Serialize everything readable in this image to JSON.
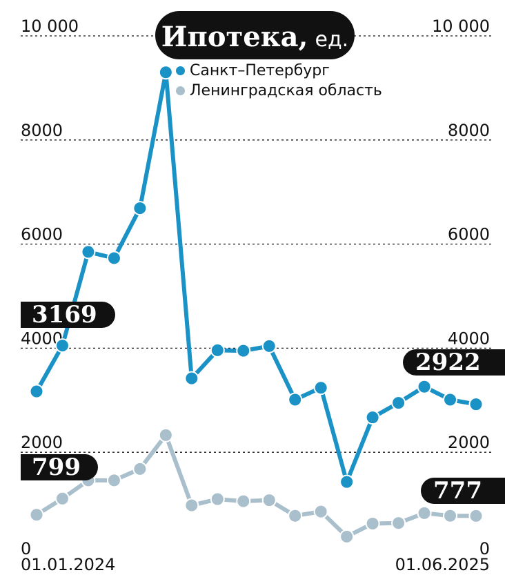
{
  "title": {
    "main": "Ипотека,",
    "unit": "ед."
  },
  "legend": [
    {
      "label": "Санкт–Петербург",
      "color": "#1a92c6"
    },
    {
      "label": "Ленинградская область",
      "color": "#a9bfcc"
    }
  ],
  "callouts": {
    "spb_start": "3169",
    "lo_start": "799",
    "spb_end": "2922",
    "lo_end": "777"
  },
  "x_axis": {
    "start": "01.01.2024",
    "end": "01.06.2025"
  },
  "chart_data": {
    "type": "line",
    "x": [
      "01.2024",
      "02.2024",
      "03.2024",
      "04.2024",
      "05.2024",
      "06.2024",
      "07.2024",
      "08.2024",
      "09.2024",
      "10.2024",
      "11.2024",
      "12.2024",
      "01.2025",
      "02.2025",
      "03.2025",
      "04.2025",
      "05.2025",
      "06.2025"
    ],
    "series": [
      {
        "name": "Санкт–Петербург",
        "color": "#1a92c6",
        "values": [
          3169,
          4050,
          5850,
          5730,
          6690,
          9300,
          3420,
          3960,
          3950,
          4040,
          3010,
          3240,
          1430,
          2670,
          2950,
          3260,
          3010,
          2922
        ]
      },
      {
        "name": "Ленинградская область",
        "color": "#a9bfcc",
        "values": [
          799,
          1110,
          1460,
          1460,
          1680,
          2330,
          980,
          1100,
          1060,
          1080,
          780,
          860,
          380,
          630,
          640,
          830,
          780,
          777
        ]
      }
    ],
    "y_ticks": [
      "0",
      "2000",
      "4000",
      "6000",
      "8000",
      "10 000"
    ],
    "y_tick_values": [
      0,
      2000,
      4000,
      6000,
      8000,
      10000
    ],
    "ylim": [
      0,
      10000
    ],
    "grid": true,
    "legend_position": "top-center"
  }
}
